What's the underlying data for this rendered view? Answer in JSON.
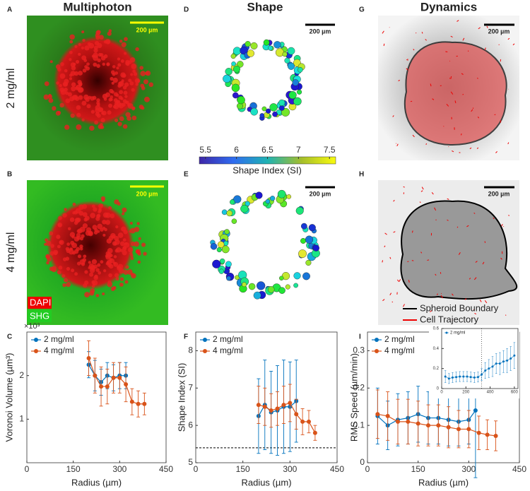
{
  "columns": [
    "Multiphoton",
    "Shape",
    "Dynamics"
  ],
  "panel_letters": [
    "A",
    "B",
    "C",
    "D",
    "E",
    "F",
    "G",
    "H",
    "I"
  ],
  "rows": [
    "2 mg/ml",
    "4 mg/ml"
  ],
  "scale_bar": "200 µm",
  "multiphoton_legend": [
    "DAPI",
    "SHG"
  ],
  "colorbar": {
    "label": "Shape Index (SI)",
    "ticks": [
      5.5,
      6,
      6.5,
      7,
      7.5
    ],
    "lim": [
      5.4,
      7.6
    ]
  },
  "dynamics_legend": [
    "Spheroid Boundary",
    "Cell Trajectory"
  ],
  "chart_data": [
    {
      "type": "line",
      "xlabel": "Radius (µm)",
      "ylabel": "Voronoi Volume (µm³)",
      "y_exponent": "×10³",
      "xlim": [
        0,
        450
      ],
      "xticks": [
        0,
        150,
        300,
        450
      ],
      "ylim": [
        0,
        3
      ],
      "yticks": [
        1,
        2
      ],
      "series": [
        {
          "name": "2 mg/ml",
          "color": "#0072bd",
          "x": [
            200,
            220,
            240,
            260,
            280,
            300,
            320
          ],
          "values": [
            2.25,
            2.0,
            1.85,
            2.0,
            1.95,
            2.0,
            2.0
          ],
          "errors": [
            0.3,
            0.35,
            0.3,
            0.3,
            0.3,
            0.3,
            0.3
          ]
        },
        {
          "name": "4 mg/ml",
          "color": "#d95319",
          "x": [
            200,
            220,
            240,
            260,
            280,
            300,
            320,
            340,
            360,
            380
          ],
          "values": [
            2.4,
            2.0,
            1.75,
            1.75,
            1.95,
            1.95,
            1.8,
            1.4,
            1.35,
            1.35
          ],
          "errors": [
            0.4,
            0.4,
            0.45,
            0.4,
            0.35,
            0.35,
            0.4,
            0.3,
            0.3,
            0.25
          ]
        }
      ]
    },
    {
      "type": "line",
      "xlabel": "Radius (µm)",
      "ylabel": "Shape Index (SI)",
      "xlim": [
        0,
        450
      ],
      "xticks": [
        0,
        150,
        300,
        450
      ],
      "ylim": [
        5,
        8.5
      ],
      "yticks": [
        5,
        6,
        7,
        8
      ],
      "reference_line": 5.4,
      "series": [
        {
          "name": "2 mg/ml",
          "color": "#0072bd",
          "x": [
            200,
            220,
            240,
            260,
            280,
            300,
            320
          ],
          "values": [
            6.25,
            6.55,
            6.35,
            6.4,
            6.5,
            6.5,
            6.65
          ],
          "errors": [
            1.0,
            1.2,
            1.1,
            1.2,
            1.25,
            1.2,
            1.1
          ]
        },
        {
          "name": "4 mg/ml",
          "color": "#d95319",
          "x": [
            200,
            220,
            240,
            260,
            280,
            300,
            320,
            340,
            360,
            380
          ],
          "values": [
            6.55,
            6.5,
            6.4,
            6.45,
            6.55,
            6.6,
            6.3,
            6.1,
            6.1,
            5.8
          ],
          "errors": [
            0.5,
            0.5,
            0.45,
            0.45,
            0.5,
            0.5,
            0.4,
            0.35,
            0.3,
            0.2
          ]
        }
      ]
    },
    {
      "type": "line",
      "xlabel": "Radius (µm)",
      "ylabel": "RMS Speed (µm/min)",
      "xlim": [
        0,
        450
      ],
      "xticks": [
        0,
        150,
        300,
        450
      ],
      "ylim": [
        0,
        0.35
      ],
      "yticks": [
        0,
        0.1,
        0.2,
        0.3
      ],
      "series": [
        {
          "name": "2 mg/ml",
          "color": "#0072bd",
          "x": [
            30,
            60,
            90,
            120,
            150,
            180,
            210,
            240,
            270,
            300,
            320
          ],
          "values": [
            0.125,
            0.1,
            0.115,
            0.12,
            0.13,
            0.12,
            0.12,
            0.115,
            0.11,
            0.115,
            0.14
          ],
          "errors": [
            0.075,
            0.065,
            0.07,
            0.07,
            0.075,
            0.07,
            0.07,
            0.07,
            0.065,
            0.065,
            0.18
          ]
        },
        {
          "name": "4 mg/ml",
          "color": "#d95319",
          "x": [
            30,
            60,
            90,
            120,
            150,
            180,
            210,
            240,
            270,
            300,
            330,
            355,
            380
          ],
          "values": [
            0.13,
            0.125,
            0.11,
            0.11,
            0.105,
            0.1,
            0.1,
            0.095,
            0.09,
            0.09,
            0.08,
            0.075,
            0.072
          ],
          "errors": [
            0.065,
            0.065,
            0.06,
            0.06,
            0.06,
            0.055,
            0.055,
            0.055,
            0.05,
            0.05,
            0.045,
            0.04,
            0.04
          ]
        }
      ]
    },
    {
      "type": "line",
      "xlim": [
        0,
        630
      ],
      "xticks": [
        0,
        200,
        400,
        600
      ],
      "ylim": [
        0,
        0.6
      ],
      "yticks": [
        0,
        0.2,
        0.4,
        0.6
      ],
      "reference_x": 330,
      "series": [
        {
          "name": "2 mg/ml",
          "color": "#0072bd",
          "x": [
            30,
            60,
            90,
            120,
            150,
            180,
            210,
            240,
            270,
            300,
            330,
            360,
            390,
            420,
            450,
            480,
            510,
            540,
            570,
            600
          ],
          "values": [
            0.12,
            0.1,
            0.11,
            0.115,
            0.12,
            0.12,
            0.12,
            0.115,
            0.11,
            0.115,
            0.14,
            0.18,
            0.2,
            0.22,
            0.25,
            0.25,
            0.27,
            0.28,
            0.3,
            0.33
          ],
          "errors": [
            0.06,
            0.05,
            0.05,
            0.05,
            0.05,
            0.05,
            0.05,
            0.05,
            0.05,
            0.05,
            0.06,
            0.08,
            0.09,
            0.1,
            0.1,
            0.11,
            0.11,
            0.12,
            0.12,
            0.13
          ]
        }
      ]
    }
  ]
}
